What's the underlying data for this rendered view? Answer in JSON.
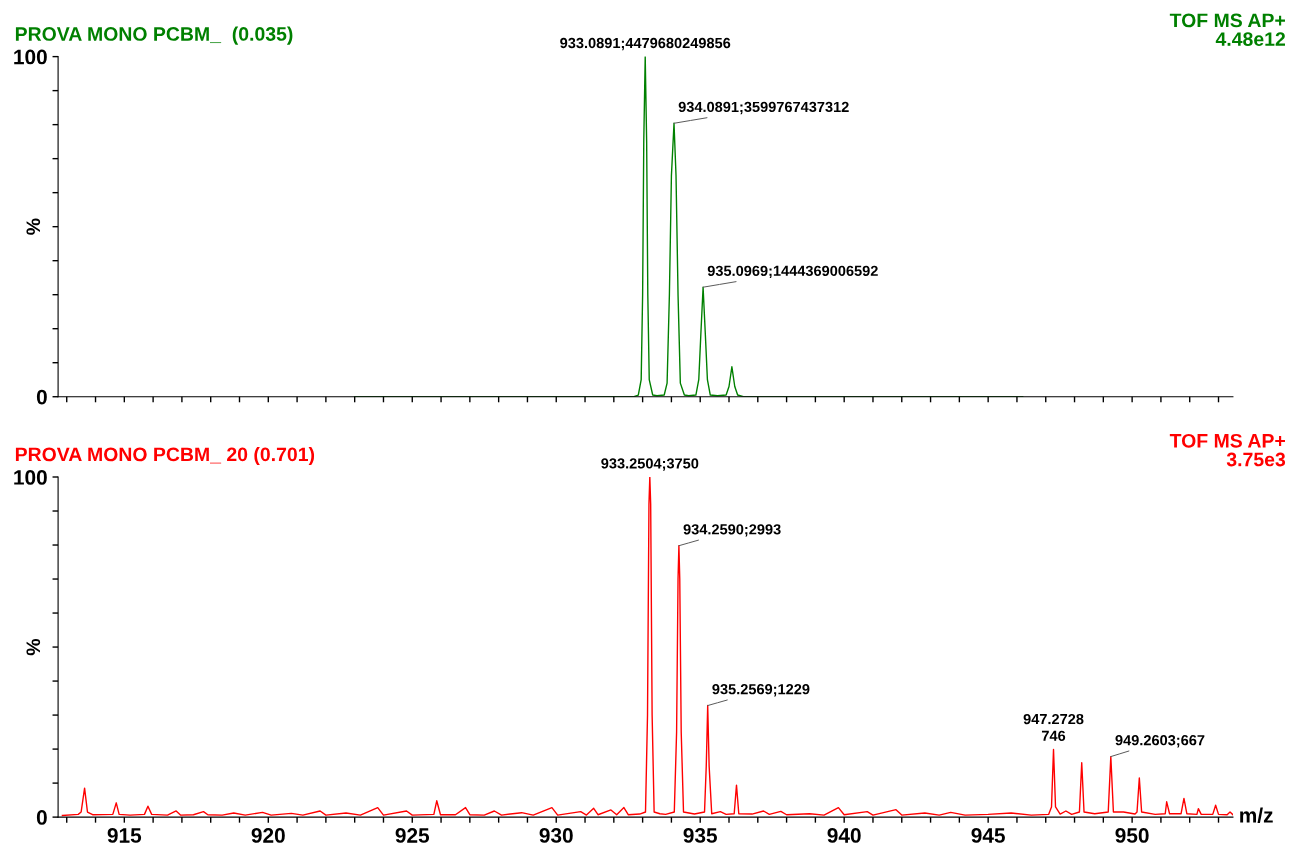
{
  "chart_data": [
    {
      "type": "line",
      "title": "PROVA MONO PCBM_  (0.035)",
      "ylabel": "%",
      "tick_labels": "y",
      "grid": false,
      "legend": false,
      "marker": "none",
      "line_style": "solid",
      "xlim": [
        912.7,
        953.5
      ],
      "ylim": [
        0,
        100
      ],
      "xticks": [
        {
          "value": 913,
          "label": null
        },
        {
          "value": 914,
          "label": null
        },
        915,
        {
          "value": 916,
          "label": null
        },
        {
          "value": 917,
          "label": null
        },
        {
          "value": 918,
          "label": null
        },
        {
          "value": 919,
          "label": null
        },
        920,
        {
          "value": 921,
          "label": null
        },
        {
          "value": 922,
          "label": null
        },
        {
          "value": 923,
          "label": null
        },
        {
          "value": 924,
          "label": null
        },
        925,
        {
          "value": 926,
          "label": null
        },
        {
          "value": 927,
          "label": null
        },
        {
          "value": 928,
          "label": null
        },
        {
          "value": 929,
          "label": null
        },
        930,
        {
          "value": 931,
          "label": null
        },
        {
          "value": 932,
          "label": null
        },
        {
          "value": 933,
          "label": null
        },
        {
          "value": 934,
          "label": null
        },
        935,
        {
          "value": 936,
          "label": null
        },
        {
          "value": 937,
          "label": null
        },
        {
          "value": 938,
          "label": null
        },
        {
          "value": 939,
          "label": null
        },
        940,
        {
          "value": 941,
          "label": null
        },
        {
          "value": 942,
          "label": null
        },
        {
          "value": 943,
          "label": null
        },
        {
          "value": 944,
          "label": null
        },
        945,
        {
          "value": 946,
          "label": null
        },
        {
          "value": 947,
          "label": null
        },
        {
          "value": 948,
          "label": null
        },
        {
          "value": 949,
          "label": null
        },
        950,
        {
          "value": 951,
          "label": null
        },
        {
          "value": 952,
          "label": null
        },
        {
          "value": 953,
          "label": null
        }
      ],
      "yticks": [
        0,
        {
          "value": 10,
          "label": null
        },
        {
          "value": 20,
          "label": null
        },
        {
          "value": 30,
          "label": null
        },
        {
          "value": 40,
          "label": null
        },
        {
          "value": 50,
          "label": null
        },
        {
          "value": 60,
          "label": null
        },
        {
          "value": 70,
          "label": null
        },
        {
          "value": 80,
          "label": null
        },
        {
          "value": 90,
          "label": null
        },
        100
      ],
      "series": [
        {
          "color": "#008000",
          "x": [
            923.0,
            932.7,
            932.85,
            932.95,
            933.0,
            933.04,
            933.09,
            933.14,
            933.18,
            933.23,
            933.35,
            933.5,
            933.75,
            933.85,
            933.93,
            934.0,
            934.09,
            934.16,
            934.23,
            934.31,
            934.45,
            934.6,
            934.85,
            934.95,
            935.02,
            935.1,
            935.18,
            935.25,
            935.35,
            935.6,
            935.9,
            936.0,
            936.1,
            936.2,
            936.3,
            936.5,
            946.2
          ],
          "values": [
            0,
            0,
            0.5,
            5,
            30,
            75,
            100,
            75,
            30,
            5,
            0.5,
            0.3,
            0.5,
            4,
            30,
            65,
            80.4,
            65,
            30,
            4,
            0.5,
            0.3,
            0.5,
            5,
            18,
            32.2,
            18,
            5,
            0.5,
            0.3,
            0.5,
            3,
            8.8,
            3,
            0.5,
            0,
            0
          ]
        }
      ],
      "annotations": [
        {
          "text": "933.0891;4479680249856",
          "x": 933.09,
          "y": 100
        },
        {
          "text": "934.0891;3599767437312",
          "x": 934.09,
          "y": 80.4
        },
        {
          "text": "935.0969;1444369006592",
          "x": 935.1,
          "y": 32.2
        },
        "TOF MS AP+",
        "4.48e12"
      ]
    },
    {
      "type": "line",
      "title": "PROVA MONO PCBM_ 20 (0.701)",
      "ylabel": "%",
      "xlabel": "m/z",
      "grid": false,
      "legend": false,
      "marker": "none",
      "line_style": "solid",
      "xlim": [
        912.7,
        953.5
      ],
      "ylim": [
        0,
        100
      ],
      "xticks": [
        {
          "value": 913,
          "label": null
        },
        {
          "value": 914,
          "label": null
        },
        915,
        {
          "value": 916,
          "label": null
        },
        {
          "value": 917,
          "label": null
        },
        {
          "value": 918,
          "label": null
        },
        {
          "value": 919,
          "label": null
        },
        920,
        {
          "value": 921,
          "label": null
        },
        {
          "value": 922,
          "label": null
        },
        {
          "value": 923,
          "label": null
        },
        {
          "value": 924,
          "label": null
        },
        925,
        {
          "value": 926,
          "label": null
        },
        {
          "value": 927,
          "label": null
        },
        {
          "value": 928,
          "label": null
        },
        {
          "value": 929,
          "label": null
        },
        930,
        {
          "value": 931,
          "label": null
        },
        {
          "value": 932,
          "label": null
        },
        {
          "value": 933,
          "label": null
        },
        {
          "value": 934,
          "label": null
        },
        935,
        {
          "value": 936,
          "label": null
        },
        {
          "value": 937,
          "label": null
        },
        {
          "value": 938,
          "label": null
        },
        {
          "value": 939,
          "label": null
        },
        940,
        {
          "value": 941,
          "label": null
        },
        {
          "value": 942,
          "label": null
        },
        {
          "value": 943,
          "label": null
        },
        {
          "value": 944,
          "label": null
        },
        945,
        {
          "value": 946,
          "label": null
        },
        {
          "value": 947,
          "label": null
        },
        {
          "value": 948,
          "label": null
        },
        {
          "value": 949,
          "label": null
        },
        950,
        {
          "value": 951,
          "label": null
        },
        {
          "value": 952,
          "label": null
        },
        {
          "value": 953,
          "label": null
        }
      ],
      "yticks": [
        0,
        {
          "value": 10,
          "label": null
        },
        {
          "value": 20,
          "label": null
        },
        {
          "value": 30,
          "label": null
        },
        {
          "value": 40,
          "label": null
        },
        {
          "value": 50,
          "label": null
        },
        {
          "value": 60,
          "label": null
        },
        {
          "value": 70,
          "label": null
        },
        {
          "value": 80,
          "label": null
        },
        {
          "value": 90,
          "label": null
        },
        100
      ],
      "series": [
        {
          "color": "#ff0000",
          "x": [
            912.85,
            913.4,
            913.5,
            913.62,
            913.72,
            913.9,
            914.6,
            914.72,
            914.82,
            915.2,
            915.7,
            915.82,
            915.95,
            916.5,
            916.8,
            916.95,
            917.4,
            917.75,
            917.9,
            918.4,
            918.8,
            919.2,
            919.8,
            920.1,
            920.8,
            921.2,
            921.8,
            922.0,
            922.7,
            923.2,
            923.8,
            924.0,
            924.8,
            925.0,
            925.75,
            925.85,
            925.98,
            926.5,
            926.85,
            927.0,
            927.5,
            927.85,
            928.1,
            928.8,
            929.2,
            929.85,
            930.05,
            930.85,
            931.05,
            931.3,
            931.45,
            931.9,
            932.1,
            932.35,
            932.5,
            932.9,
            933.1,
            933.17,
            933.22,
            933.25,
            933.28,
            933.33,
            933.4,
            933.6,
            933.8,
            934.1,
            934.18,
            934.23,
            934.26,
            934.29,
            934.34,
            934.42,
            934.8,
            935.15,
            935.21,
            935.26,
            935.31,
            935.4,
            935.7,
            935.9,
            936.18,
            936.26,
            936.34,
            936.8,
            937.2,
            937.4,
            937.8,
            938.0,
            938.8,
            939.3,
            939.8,
            940.0,
            940.8,
            941.0,
            941.8,
            942.0,
            942.8,
            943.3,
            943.7,
            944.2,
            945.0,
            945.8,
            946.5,
            947.1,
            947.2,
            947.27,
            947.34,
            947.5,
            947.7,
            947.9,
            948.17,
            948.25,
            948.33,
            948.7,
            949.17,
            949.26,
            949.35,
            949.7,
            950.1,
            950.17,
            950.25,
            950.33,
            950.8,
            951.15,
            951.2,
            951.3,
            951.7,
            951.8,
            951.9,
            952.25,
            952.3,
            952.4,
            952.8,
            952.9,
            953.0,
            953.3,
            953.4,
            953.5
          ],
          "values": [
            0.5,
            0.8,
            1.5,
            8.5,
            1.5,
            0.7,
            0.8,
            4.2,
            0.8,
            0.6,
            0.8,
            3.2,
            0.8,
            0.6,
            1.8,
            0.6,
            0.7,
            1.6,
            0.7,
            0.6,
            1.2,
            0.6,
            1.4,
            0.6,
            1.1,
            0.6,
            1.8,
            0.6,
            1.2,
            0.6,
            2.8,
            0.6,
            1.8,
            0.6,
            0.8,
            4.8,
            0.7,
            0.7,
            2.8,
            0.7,
            0.6,
            1.8,
            0.6,
            1.3,
            0.6,
            2.8,
            0.6,
            1.6,
            0.6,
            2.6,
            0.7,
            2.1,
            0.7,
            2.8,
            0.7,
            0.9,
            1.5,
            30,
            92,
            100,
            92,
            30,
            1.5,
            1.0,
            0.8,
            1.5,
            25,
            70,
            79.8,
            70,
            25,
            1.5,
            0.9,
            1.5,
            15,
            32.8,
            15,
            1.0,
            1.6,
            0.8,
            1.0,
            9.4,
            1.0,
            0.9,
            1.8,
            0.8,
            1.7,
            0.7,
            1.0,
            0.6,
            2.8,
            0.7,
            1.6,
            0.6,
            2.2,
            0.6,
            1.2,
            0.6,
            1.4,
            0.6,
            0.8,
            1.2,
            0.6,
            0.8,
            3.0,
            19.9,
            3.0,
            0.9,
            1.8,
            0.8,
            1.5,
            16,
            1.5,
            1.0,
            1.5,
            17.8,
            1.5,
            1.5,
            0.9,
            1.5,
            11.5,
            1.5,
            0.8,
            1.0,
            4.5,
            1.0,
            1.0,
            5.5,
            1.0,
            0.8,
            2.5,
            0.8,
            0.8,
            3.5,
            0.8,
            0.7,
            1.5,
            0.7
          ]
        }
      ],
      "annotations": [
        {
          "text": "933.2504;3750",
          "x": 933.25,
          "y": 100
        },
        {
          "text": "934.2590;2993",
          "x": 934.26,
          "y": 79.8
        },
        {
          "text": "935.2569;1229",
          "x": 935.26,
          "y": 32.8
        },
        {
          "text": "947.2728\n746",
          "x": 947.27,
          "y": 19.9
        },
        {
          "text": "949.2603;667",
          "x": 949.26,
          "y": 17.8
        },
        "TOF MS AP+",
        "3.75e3"
      ]
    }
  ]
}
